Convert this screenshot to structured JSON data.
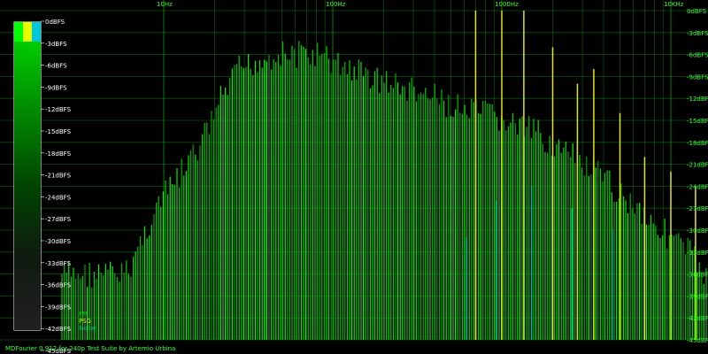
{
  "chart_data": {
    "type": "bar",
    "title": "",
    "xlabel": "",
    "ylabel": "",
    "x_scale": "log",
    "x_tick_labels": [
      "10Hz",
      "100Hz",
      "1000Hz",
      "10KHz"
    ],
    "x_tick_values": [
      10,
      100,
      1000,
      10000
    ],
    "ylim_dbfs": [
      -45,
      0
    ],
    "y_tick_labels_left": [
      "0dBFS",
      "-3dBFS",
      "-6dBFS",
      "-9dBFS",
      "-12dBFS",
      "-15dBFS",
      "-18dBFS",
      "-21dBFS",
      "-24dBFS",
      "-27dBFS",
      "-30dBFS",
      "-33dBFS",
      "-36dBFS",
      "-39dBFS",
      "-42dBFS",
      "-45dBFS"
    ],
    "y_tick_labels_right": [
      "0dBFS",
      "-3dBFS",
      "-6dBFS",
      "-9dBFS",
      "-12dBFS",
      "-15dBFS",
      "-18dBFS",
      "-21dBFS",
      "-24dBFS",
      "-27dBFS",
      "-30dBFS",
      "-33dBFS",
      "-36dBFS",
      "-39dBFS",
      "-42dBFS",
      "-45dBFS"
    ],
    "grid": true,
    "legend_position": "bottom-left",
    "legend": [
      "FM",
      "PSG",
      "Noise"
    ],
    "series": [
      {
        "name": "FM",
        "color": "#00e000",
        "points": [
          [
            6,
            -34
          ],
          [
            9,
            -25
          ],
          [
            16,
            -17
          ],
          [
            22,
            -10
          ],
          [
            28,
            -6
          ],
          [
            35,
            -5
          ],
          [
            45,
            -4
          ],
          [
            60,
            -4
          ],
          [
            80,
            -4
          ],
          [
            100,
            -5
          ],
          [
            130,
            -6
          ],
          [
            170,
            -7
          ],
          [
            220,
            -8
          ],
          [
            300,
            -9
          ],
          [
            400,
            -10
          ],
          [
            500,
            -11
          ],
          [
            650,
            -12
          ],
          [
            800,
            -12
          ],
          [
            1000,
            -13
          ],
          [
            1300,
            -14
          ],
          [
            1700,
            -15
          ],
          [
            2200,
            -17
          ],
          [
            3000,
            -19
          ],
          [
            4000,
            -21
          ],
          [
            5000,
            -23
          ],
          [
            6500,
            -25
          ],
          [
            8000,
            -27
          ],
          [
            10000,
            -29
          ],
          [
            13000,
            -31
          ],
          [
            16000,
            -34
          ],
          [
            20000,
            -38
          ]
        ]
      },
      {
        "name": "PSG",
        "color": "#e6e600",
        "peaks": [
          [
            700,
            0
          ],
          [
            1000,
            0
          ],
          [
            1350,
            0
          ],
          [
            2000,
            -5
          ],
          [
            2800,
            -10
          ],
          [
            3500,
            -8
          ],
          [
            5000,
            -14
          ],
          [
            7000,
            -20
          ],
          [
            10000,
            -22
          ],
          [
            14000,
            -24
          ]
        ]
      },
      {
        "name": "Noise",
        "color": "#00b4b4",
        "peaks": [
          [
            620,
            -31
          ],
          [
            930,
            -26
          ],
          [
            1500,
            -24
          ],
          [
            2600,
            -27
          ],
          [
            4500,
            -30
          ]
        ]
      }
    ]
  },
  "color_legend": {
    "colors": [
      "#00ff00",
      "#e6ff00",
      "#00c8d8"
    ],
    "gradient_stops": [
      "#00cc00",
      "#008800",
      "#004400",
      "#101a10",
      "#202020"
    ]
  },
  "footer_text": "MDFourier 0.912 for 240p Test Suite by Artemio Urbina"
}
